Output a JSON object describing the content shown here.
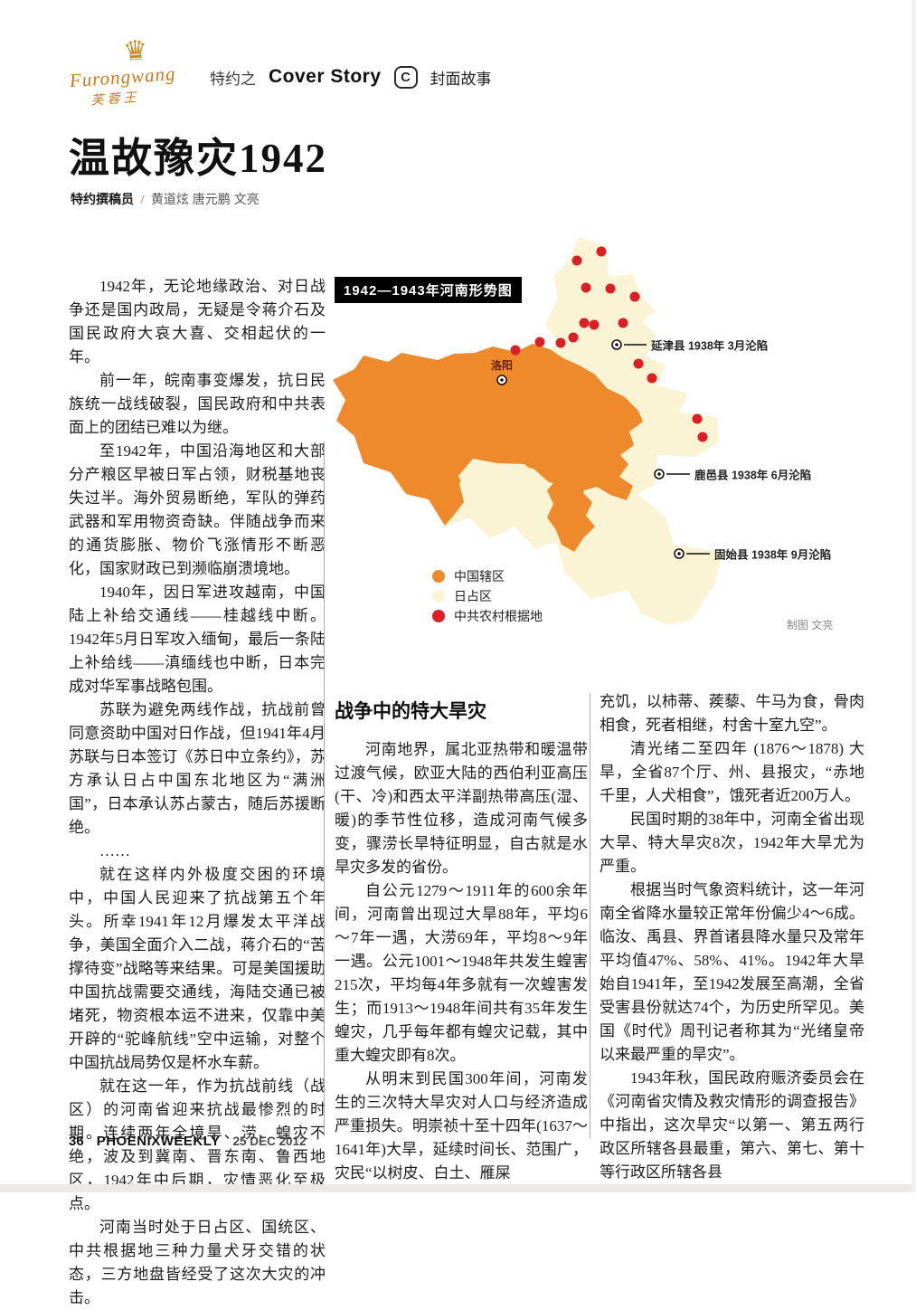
{
  "header": {
    "logo": {
      "crown_glyph": "♛",
      "brand_script": "Furongwang",
      "brand_chinese": "芙蓉王"
    },
    "sponsor_label": "特约之",
    "cover_story_en": "Cover Story",
    "cover_story_icon_glyph": "C",
    "cover_story_cn": "封面故事"
  },
  "article": {
    "title": "温故豫灾1942",
    "byline_role": "特约撰稿员",
    "byline_slash": "/",
    "byline_authors": "黄道炫 唐元鹏 文亮",
    "left_column_paragraphs": [
      "1942年，无论地缘政治、对日战争还是国内政局，无疑是令蒋介石及国民政府大哀大喜、交相起伏的一年。",
      "前一年，皖南事变爆发，抗日民族统一战线破裂，国民政府和中共表面上的团结已难以为继。",
      "至1942年，中国沿海地区和大部分产粮区早被日军占领，财税基地丧失过半。海外贸易断绝，军队的弹药武器和军用物资奇缺。伴随战争而来的通货膨胀、物价飞涨情形不断恶化，国家财政已到濒临崩溃境地。",
      "1940年，因日军进攻越南，中国陆上补给交通线——桂越线中断。1942年5月日军攻入缅甸，最后一条陆上补给线——滇缅线也中断，日本完成对华军事战略包围。",
      "苏联为避免两线作战，抗战前曾同意资助中国对日作战，但1941年4月苏联与日本签订《苏日中立条约》，苏方承认日占中国东北地区为“满洲国”，日本承认苏占蒙古，随后苏援断绝。",
      "……",
      "就在这样内外极度交困的环境中，中国人民迎来了抗战第五个年头。所幸1941年12月爆发太平洋战争，美国全面介入二战，蒋介石的“苦撑待变”战略等来结果。可是美国援助中国抗战需要交通线，海陆交通已被堵死，物资根本运不进来，仅靠中美开辟的“驼峰航线”空中运输，对整个中国抗战局势仅是杯水车薪。",
      "就在这一年，作为抗战前线（战区）的河南省迎来抗战最惨烈的时期。连续两年全境旱、涝、蝗灾不绝，波及到冀南、晋东南、鲁西地区，1942年中后期，灾情恶化至极点。",
      "河南当时处于日占区、国统区、中共根据地三种力量犬牙交错的状态，三方地盘皆经受了这次大灾的冲击。"
    ],
    "section_heading": "战争中的特大旱灾",
    "middle_column_paragraphs": [
      "河南地界，属北亚热带和暖温带过渡气候，欧亚大陆的西伯利亚高压(干、冷)和西太平洋副热带高压(湿、暖)的季节性位移，造成河南气候多变，骤涝长旱特征明显，自古就是水旱灾多发的省份。",
      "自公元1279～1911年的600余年间，河南曾出现过大旱88年，平均6～7年一遇，大涝69年，平均8～9年一遇。公元1001～1948年共发生蝗害215次，平均每4年多就有一次蝗害发生；而1913～1948年间共有35年发生蝗灾，几乎每年都有蝗灾记载，其中重大蝗灾即有8次。",
      "从明末到民国300年间，河南发生的三次特大旱灾对人口与经济造成严重损失。明崇祯十至十四年(1637～1641年)大旱，延续时间长、范围广，灾民“以树皮、白土、雁屎"
    ],
    "right_column_paragraphs": [
      "充饥，以柿蒂、蒺藜、牛马为食，骨肉相食，死者相继，村舍十室九空”。",
      "清光绪二至四年 (1876～1878) 大旱，全省87个厅、州、县报灾，“赤地千里，人犬相食”，饿死者近200万人。",
      "民国时期的38年中，河南全省出现大旱、特大旱灾8次，1942年大旱尤为严重。",
      "根据当时气象资料统计，这一年河南全省降水量较正常年份偏少4～6成。临汝、禹县、界首诸县降水量只及常年平均值47%、58%、41%。1942年大旱始自1941年，至1942发展至高潮，全省受害县份就达74个，为历史所罕见。美国《时代》周刊记者称其为“光绪皇帝以来最严重的旱灾”。",
      "1943年秋，国民政府赈济委员会在《河南省灾情及救灾情形的调查报告》中指出，这次旱灾“以第一、第五两行政区所辖各县最重，第六、第七、第十等行政区所辖各县"
    ]
  },
  "map": {
    "title": "1942—1943年河南形势图",
    "city_label": "洛阳",
    "callouts": [
      {
        "label": "延津县 1938年 3月沦陷"
      },
      {
        "label": "鹿邑县 1938年 6月沦陷"
      },
      {
        "label": "固始县 1938年 9月沦陷"
      }
    ],
    "legend": [
      {
        "label": "中国辖区",
        "color": "#ee8a2b"
      },
      {
        "label": "日占区",
        "color": "#faf3d4"
      },
      {
        "label": "中共农村根据地",
        "color": "#dc1e26"
      }
    ],
    "credit": "制图 文亮",
    "colors": {
      "china_area": "#ee8a2b",
      "japan_area": "#faf3d4",
      "ccp_base": "#dc1e26"
    },
    "base_dots": [
      [
        300,
        28
      ],
      [
        273,
        38
      ],
      [
        283,
        68
      ],
      [
        310,
        69
      ],
      [
        337,
        78
      ],
      [
        281,
        107
      ],
      [
        292,
        109
      ],
      [
        324,
        107
      ],
      [
        269,
        123
      ],
      [
        255,
        129
      ],
      [
        232,
        128
      ],
      [
        205,
        137
      ],
      [
        341,
        152
      ],
      [
        356,
        168
      ],
      [
        406,
        213
      ],
      [
        412,
        233
      ]
    ]
  },
  "footer": {
    "page_number": "36",
    "magazine": "PHOENIXWEEKLY",
    "date": "25 DEC 2012"
  }
}
